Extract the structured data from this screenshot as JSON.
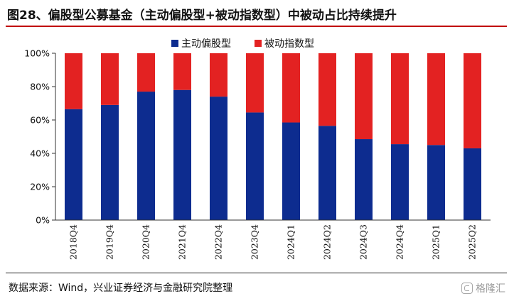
{
  "title": "图28、偏股型公募基金（主动偏股型+被动指数型）中被动占比持续提升",
  "source": "数据来源：Wind，兴业证券经济与金融研究院整理",
  "watermark": {
    "icon": "gelonghui-logo-icon",
    "text": "格隆汇"
  },
  "colors": {
    "active": "#0d2c8f",
    "passive": "#e32222",
    "title_rule": "#c00000"
  },
  "chart_data": {
    "type": "bar",
    "stacked": true,
    "categories": [
      "2018Q4",
      "2019Q4",
      "2020Q4",
      "2021Q4",
      "2022Q4",
      "2023Q4",
      "2024Q1",
      "2024Q2",
      "2024Q3",
      "2024Q4",
      "2025Q1",
      "2025Q2"
    ],
    "series": [
      {
        "name": "主动偏股型",
        "color": "#0d2c8f",
        "values": [
          66.5,
          69,
          77,
          78,
          74,
          64.5,
          58.5,
          56.5,
          48.5,
          45.5,
          45,
          43
        ]
      },
      {
        "name": "被动指数型",
        "color": "#e32222",
        "values": [
          33.5,
          31,
          23,
          22,
          26,
          35.5,
          41.5,
          43.5,
          51.5,
          54.5,
          55,
          57
        ]
      }
    ],
    "yticks": [
      "0%",
      "20%",
      "40%",
      "60%",
      "80%",
      "100%"
    ],
    "ylim": [
      0,
      100
    ],
    "legend_position": "top-center",
    "grid": false
  }
}
